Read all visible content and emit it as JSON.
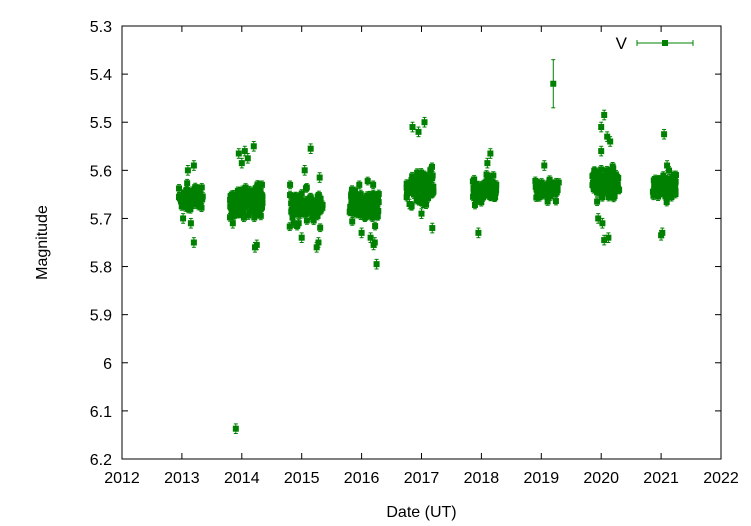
{
  "chart_data": {
    "type": "scatter",
    "title": "",
    "xlabel": "Date (UT)",
    "ylabel": "Magnitude",
    "xlim": [
      2012,
      2022
    ],
    "ylim": [
      5.3,
      6.2
    ],
    "y_inverted": true,
    "xticks": [
      "2012",
      "2013",
      "2014",
      "2015",
      "2016",
      "2017",
      "2018",
      "2019",
      "2020",
      "2021",
      "2022"
    ],
    "yticks": [
      "5.3",
      "5.4",
      "5.5",
      "5.6",
      "5.7",
      "5.8",
      "5.9",
      "6",
      "6.1",
      "6.2"
    ],
    "grid": false,
    "legend_position": "top-right",
    "series": [
      {
        "name": "V",
        "color": "#008000",
        "marker": "square",
        "error_bars": true,
        "clusters": [
          {
            "x_start": 2012.95,
            "x_end": 2013.35,
            "y_center": 5.66,
            "y_spread": 0.025,
            "count": 55
          },
          {
            "x_start": 2013.8,
            "x_end": 2014.35,
            "y_center": 5.665,
            "y_spread": 0.028,
            "count": 130
          },
          {
            "x_start": 2014.8,
            "x_end": 2015.35,
            "y_center": 5.675,
            "y_spread": 0.028,
            "count": 100
          },
          {
            "x_start": 2015.8,
            "x_end": 2016.3,
            "y_center": 5.67,
            "y_spread": 0.03,
            "count": 110
          },
          {
            "x_start": 2016.75,
            "x_end": 2017.2,
            "y_center": 5.635,
            "y_spread": 0.03,
            "count": 110
          },
          {
            "x_start": 2017.85,
            "x_end": 2018.25,
            "y_center": 5.64,
            "y_spread": 0.02,
            "count": 90
          },
          {
            "x_start": 2018.9,
            "x_end": 2019.3,
            "y_center": 5.64,
            "y_spread": 0.018,
            "count": 70
          },
          {
            "x_start": 2019.85,
            "x_end": 2020.3,
            "y_center": 5.625,
            "y_spread": 0.025,
            "count": 130
          },
          {
            "x_start": 2020.85,
            "x_end": 2021.25,
            "y_center": 5.635,
            "y_spread": 0.022,
            "count": 100
          }
        ],
        "points": [
          {
            "x": 2013.02,
            "y": 5.7
          },
          {
            "x": 2013.1,
            "y": 5.6
          },
          {
            "x": 2013.2,
            "y": 5.59
          },
          {
            "x": 2013.2,
            "y": 5.75
          },
          {
            "x": 2013.15,
            "y": 5.71
          },
          {
            "x": 2013.9,
            "y": 6.137
          },
          {
            "x": 2013.95,
            "y": 5.565
          },
          {
            "x": 2014.05,
            "y": 5.56
          },
          {
            "x": 2014.1,
            "y": 5.575
          },
          {
            "x": 2014.2,
            "y": 5.55
          },
          {
            "x": 2014.22,
            "y": 5.76
          },
          {
            "x": 2014.25,
            "y": 5.755
          },
          {
            "x": 2014.0,
            "y": 5.585
          },
          {
            "x": 2013.85,
            "y": 5.71
          },
          {
            "x": 2015.0,
            "y": 5.74
          },
          {
            "x": 2015.05,
            "y": 5.6
          },
          {
            "x": 2015.15,
            "y": 5.555
          },
          {
            "x": 2015.25,
            "y": 5.76
          },
          {
            "x": 2015.28,
            "y": 5.75
          },
          {
            "x": 2015.3,
            "y": 5.615
          },
          {
            "x": 2016.0,
            "y": 5.73
          },
          {
            "x": 2016.15,
            "y": 5.74
          },
          {
            "x": 2016.2,
            "y": 5.755
          },
          {
            "x": 2016.25,
            "y": 5.795
          },
          {
            "x": 2016.22,
            "y": 5.75
          },
          {
            "x": 2016.85,
            "y": 5.51
          },
          {
            "x": 2016.95,
            "y": 5.52
          },
          {
            "x": 2017.05,
            "y": 5.5
          },
          {
            "x": 2017.18,
            "y": 5.72
          },
          {
            "x": 2017.0,
            "y": 5.69
          },
          {
            "x": 2016.8,
            "y": 5.67
          },
          {
            "x": 2017.95,
            "y": 5.73
          },
          {
            "x": 2018.15,
            "y": 5.565
          },
          {
            "x": 2018.1,
            "y": 5.585
          },
          {
            "x": 2019.2,
            "y": 5.42
          },
          {
            "x": 2019.05,
            "y": 5.59
          },
          {
            "x": 2020.0,
            "y": 5.51
          },
          {
            "x": 2020.05,
            "y": 5.485
          },
          {
            "x": 2020.15,
            "y": 5.54
          },
          {
            "x": 2020.1,
            "y": 5.53
          },
          {
            "x": 2020.05,
            "y": 5.745
          },
          {
            "x": 2020.12,
            "y": 5.74
          },
          {
            "x": 2020.02,
            "y": 5.71
          },
          {
            "x": 2019.95,
            "y": 5.7
          },
          {
            "x": 2020.0,
            "y": 5.56
          },
          {
            "x": 2021.0,
            "y": 5.735
          },
          {
            "x": 2021.02,
            "y": 5.73
          },
          {
            "x": 2021.05,
            "y": 5.525
          },
          {
            "x": 2021.1,
            "y": 5.59
          }
        ]
      }
    ]
  }
}
